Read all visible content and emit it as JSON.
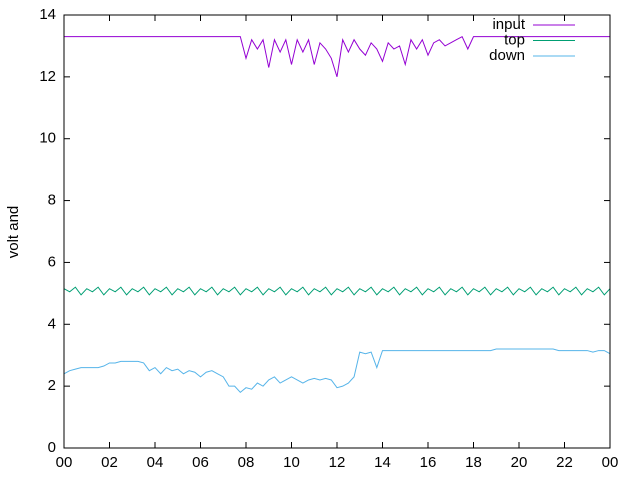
{
  "chart_data": {
    "type": "line",
    "ylabel": "volt and",
    "x": [
      0,
      0.25,
      0.5,
      0.75,
      1,
      1.25,
      1.5,
      1.75,
      2,
      2.25,
      2.5,
      2.75,
      3,
      3.25,
      3.5,
      3.75,
      4,
      4.25,
      4.5,
      4.75,
      5,
      5.25,
      5.5,
      5.75,
      6,
      6.25,
      6.5,
      6.75,
      7,
      7.25,
      7.5,
      7.75,
      8,
      8.25,
      8.5,
      8.75,
      9,
      9.25,
      9.5,
      9.75,
      10,
      10.25,
      10.5,
      10.75,
      11,
      11.25,
      11.5,
      11.75,
      12,
      12.25,
      12.5,
      12.75,
      13,
      13.25,
      13.5,
      13.75,
      14,
      14.25,
      14.5,
      14.75,
      15,
      15.25,
      15.5,
      15.75,
      16,
      16.25,
      16.5,
      16.75,
      17,
      17.25,
      17.5,
      17.75,
      18,
      18.25,
      18.5,
      18.75,
      19,
      19.25,
      19.5,
      19.75,
      20,
      20.25,
      20.5,
      20.75,
      21,
      21.25,
      21.5,
      21.75,
      22,
      22.25,
      22.5,
      22.75,
      23,
      23.25,
      23.5,
      23.75,
      24
    ],
    "series": [
      {
        "name": "input",
        "color": "#9400d3",
        "values": [
          13.3,
          13.3,
          13.3,
          13.3,
          13.3,
          13.3,
          13.3,
          13.3,
          13.3,
          13.3,
          13.3,
          13.3,
          13.3,
          13.3,
          13.3,
          13.3,
          13.3,
          13.3,
          13.3,
          13.3,
          13.3,
          13.3,
          13.3,
          13.3,
          13.3,
          13.3,
          13.3,
          13.3,
          13.3,
          13.3,
          13.3,
          13.3,
          12.6,
          13.2,
          12.9,
          13.2,
          12.3,
          13.2,
          12.8,
          13.2,
          12.4,
          13.2,
          12.8,
          13.2,
          12.4,
          13.1,
          12.9,
          12.6,
          12.0,
          13.2,
          12.8,
          13.2,
          12.9,
          12.7,
          13.1,
          12.9,
          12.5,
          13.1,
          12.9,
          13.0,
          12.4,
          13.2,
          12.9,
          13.2,
          12.7,
          13.1,
          13.2,
          13.0,
          13.1,
          13.2,
          13.3,
          12.9,
          13.3,
          13.3,
          13.3,
          13.3,
          13.3,
          13.3,
          13.3,
          13.3,
          13.3,
          13.3,
          13.3,
          13.3,
          13.3,
          13.3,
          13.3,
          13.3,
          13.3,
          13.3,
          13.3,
          13.3,
          13.3,
          13.3,
          13.3,
          13.3,
          13.3
        ]
      },
      {
        "name": "top",
        "color": "#009e73",
        "values": [
          5.15,
          5.05,
          5.2,
          4.95,
          5.15,
          5.05,
          5.2,
          4.95,
          5.15,
          5.05,
          5.2,
          4.95,
          5.15,
          5.05,
          5.2,
          4.95,
          5.15,
          5.05,
          5.2,
          4.95,
          5.15,
          5.05,
          5.2,
          4.95,
          5.15,
          5.05,
          5.2,
          4.95,
          5.15,
          5.05,
          5.2,
          4.95,
          5.15,
          5.05,
          5.2,
          4.95,
          5.15,
          5.05,
          5.2,
          4.95,
          5.15,
          5.05,
          5.2,
          4.95,
          5.15,
          5.05,
          5.2,
          4.95,
          5.15,
          5.05,
          5.2,
          4.95,
          5.15,
          5.05,
          5.2,
          4.95,
          5.15,
          5.05,
          5.2,
          4.95,
          5.15,
          5.05,
          5.2,
          4.95,
          5.15,
          5.05,
          5.2,
          4.95,
          5.15,
          5.05,
          5.2,
          4.95,
          5.15,
          5.05,
          5.2,
          4.95,
          5.15,
          5.05,
          5.2,
          4.95,
          5.15,
          5.05,
          5.2,
          4.95,
          5.15,
          5.05,
          5.2,
          4.95,
          5.15,
          5.05,
          5.2,
          4.95,
          5.15,
          5.05,
          5.2,
          4.95,
          5.15
        ]
      },
      {
        "name": "down",
        "color": "#56b4e9",
        "values": [
          2.4,
          2.5,
          2.55,
          2.6,
          2.6,
          2.6,
          2.6,
          2.65,
          2.75,
          2.75,
          2.8,
          2.8,
          2.8,
          2.8,
          2.75,
          2.5,
          2.6,
          2.4,
          2.6,
          2.5,
          2.55,
          2.4,
          2.5,
          2.45,
          2.3,
          2.45,
          2.5,
          2.4,
          2.3,
          2.0,
          2.0,
          1.8,
          1.95,
          1.9,
          2.1,
          2.0,
          2.2,
          2.3,
          2.1,
          2.2,
          2.3,
          2.2,
          2.1,
          2.2,
          2.25,
          2.2,
          2.25,
          2.2,
          1.95,
          2.0,
          2.1,
          2.3,
          3.1,
          3.05,
          3.1,
          2.6,
          3.15,
          3.15,
          3.15,
          3.15,
          3.15,
          3.15,
          3.15,
          3.15,
          3.15,
          3.15,
          3.15,
          3.15,
          3.15,
          3.15,
          3.15,
          3.15,
          3.15,
          3.15,
          3.15,
          3.15,
          3.2,
          3.2,
          3.2,
          3.2,
          3.2,
          3.2,
          3.2,
          3.2,
          3.2,
          3.2,
          3.2,
          3.15,
          3.15,
          3.15,
          3.15,
          3.15,
          3.15,
          3.1,
          3.15,
          3.15,
          3.05
        ]
      }
    ],
    "xlim": [
      0,
      24
    ],
    "xticks": [
      {
        "value": 0,
        "label": "00"
      },
      {
        "value": 2,
        "label": "02"
      },
      {
        "value": 4,
        "label": "04"
      },
      {
        "value": 6,
        "label": "06"
      },
      {
        "value": 8,
        "label": "08"
      },
      10,
      12,
      14,
      16,
      18,
      20,
      22,
      {
        "value": 24,
        "label": "00"
      }
    ],
    "ylim": [
      0,
      14
    ],
    "yticks": [
      0,
      2,
      4,
      6,
      8,
      10,
      12,
      14
    ],
    "legend": "top-right"
  }
}
